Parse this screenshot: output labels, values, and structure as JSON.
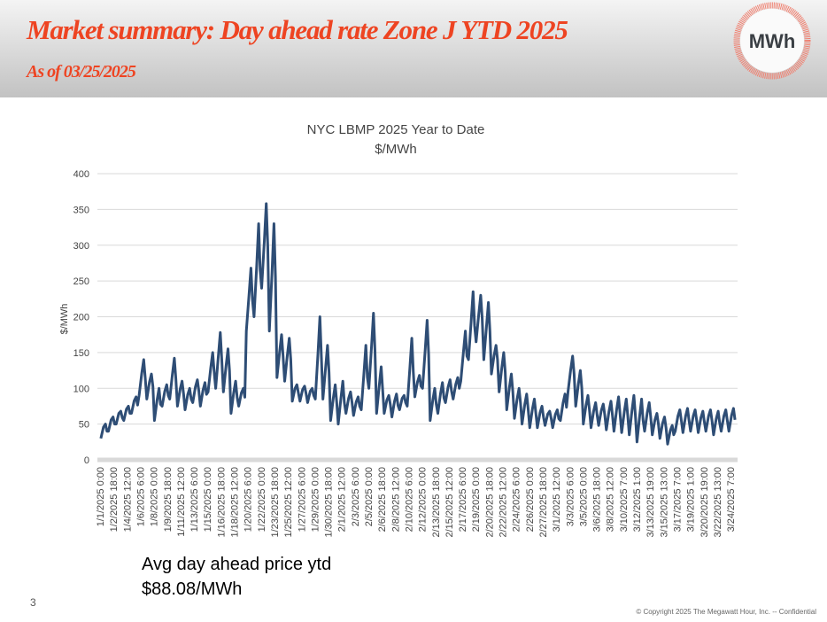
{
  "header": {
    "title": "Market summary: Day ahead rate Zone J YTD 2025",
    "subtitle": "As of 03/25/2025",
    "logo_text": "MWh"
  },
  "colors": {
    "accent": "#ee4422",
    "line": "#2e4d75",
    "grid": "#d9d9d9"
  },
  "chart_data": {
    "type": "line",
    "title": "NYC LBMP 2025 Year to Date",
    "subtitle": "$/MWh",
    "xlabel": "",
    "ylabel": "$/MWh",
    "ylim": [
      0,
      400
    ],
    "yticks": [
      "0",
      "50",
      "100",
      "150",
      "200",
      "250",
      "300",
      "350",
      "400"
    ],
    "grid": true,
    "legend": "none",
    "xtick_labels": [
      "1/1/2025 0:00",
      "1/2/2025 18:00",
      "1/4/2025 12:00",
      "1/6/2025 6:00",
      "1/8/2025 0:00",
      "1/9/2025 18:00",
      "1/11/2025 12:00",
      "1/13/2025 6:00",
      "1/15/2025 0:00",
      "1/16/2025 18:00",
      "1/18/2025 12:00",
      "1/20/2025 6:00",
      "1/22/2025 0:00",
      "1/23/2025 18:00",
      "1/25/2025 12:00",
      "1/27/2025 6:00",
      "1/29/2025 0:00",
      "1/30/2025 18:00",
      "2/1/2025 12:00",
      "2/3/2025 6:00",
      "2/5/2025 0:00",
      "2/6/2025 18:00",
      "2/8/2025 12:00",
      "2/10/2025 6:00",
      "2/12/2025 0:00",
      "2/13/2025 18:00",
      "2/15/2025 12:00",
      "2/17/2025 6:00",
      "2/19/2025 0:00",
      "2/20/2025 18:00",
      "2/22/2025 12:00",
      "2/24/2025 6:00",
      "2/26/2025 0:00",
      "2/27/2025 18:00",
      "3/1/2025 12:00",
      "3/3/2025 6:00",
      "3/5/2025 0:00",
      "3/6/2025 18:00",
      "3/8/2025 12:00",
      "3/10/2025 7:00",
      "3/12/2025 1:00",
      "3/13/2025 19:00",
      "3/15/2025 13:00",
      "3/17/2025 7:00",
      "3/19/2025 1:00",
      "3/20/2025 19:00",
      "3/22/2025 13:00",
      "3/24/2025 7:00"
    ],
    "daily_low_high": [
      [
        "1/1/2025",
        30,
        50
      ],
      [
        "1/2/2025",
        40,
        60
      ],
      [
        "1/3/2025",
        50,
        68
      ],
      [
        "1/4/2025",
        55,
        75
      ],
      [
        "1/5/2025",
        65,
        88
      ],
      [
        "1/6/2025",
        90,
        140
      ],
      [
        "1/7/2025",
        85,
        120
      ],
      [
        "1/8/2025",
        55,
        100
      ],
      [
        "1/9/2025",
        75,
        105
      ],
      [
        "1/10/2025",
        85,
        142
      ],
      [
        "1/11/2025",
        75,
        110
      ],
      [
        "1/12/2025",
        70,
        100
      ],
      [
        "1/13/2025",
        80,
        112
      ],
      [
        "1/14/2025",
        75,
        108
      ],
      [
        "1/15/2025",
        95,
        150
      ],
      [
        "1/16/2025",
        100,
        178
      ],
      [
        "1/17/2025",
        95,
        155
      ],
      [
        "1/18/2025",
        65,
        110
      ],
      [
        "1/19/2025",
        75,
        100
      ],
      [
        "1/20/2025",
        180,
        268
      ],
      [
        "1/21/2025",
        200,
        330
      ],
      [
        "1/22/2025",
        240,
        358
      ],
      [
        "1/23/2025",
        180,
        330
      ],
      [
        "1/24/2025",
        115,
        175
      ],
      [
        "1/25/2025",
        110,
        170
      ],
      [
        "1/26/2025",
        82,
        105
      ],
      [
        "1/27/2025",
        82,
        103
      ],
      [
        "1/28/2025",
        80,
        100
      ],
      [
        "1/29/2025",
        85,
        200
      ],
      [
        "1/30/2025",
        85,
        160
      ],
      [
        "1/31/2025",
        55,
        105
      ],
      [
        "2/1/2025",
        50,
        110
      ],
      [
        "2/2/2025",
        65,
        95
      ],
      [
        "2/3/2025",
        62,
        88
      ],
      [
        "2/4/2025",
        70,
        160
      ],
      [
        "2/5/2025",
        100,
        205
      ],
      [
        "2/6/2025",
        65,
        130
      ],
      [
        "2/7/2025",
        65,
        90
      ],
      [
        "2/8/2025",
        60,
        92
      ],
      [
        "2/9/2025",
        70,
        90
      ],
      [
        "2/10/2025",
        75,
        170
      ],
      [
        "2/11/2025",
        88,
        118
      ],
      [
        "2/12/2025",
        100,
        195
      ],
      [
        "2/13/2025",
        55,
        100
      ],
      [
        "2/14/2025",
        65,
        108
      ],
      [
        "2/15/2025",
        80,
        112
      ],
      [
        "2/16/2025",
        85,
        115
      ],
      [
        "2/17/2025",
        110,
        180
      ],
      [
        "2/18/2025",
        140,
        235
      ],
      [
        "2/19/2025",
        165,
        230
      ],
      [
        "2/20/2025",
        140,
        220
      ],
      [
        "2/21/2025",
        120,
        160
      ],
      [
        "2/22/2025",
        95,
        150
      ],
      [
        "2/23/2025",
        70,
        120
      ],
      [
        "2/24/2025",
        58,
        100
      ],
      [
        "2/25/2025",
        50,
        92
      ],
      [
        "2/26/2025",
        45,
        85
      ],
      [
        "2/27/2025",
        45,
        75
      ],
      [
        "2/28/2025",
        48,
        68
      ],
      [
        "3/1/2025",
        45,
        70
      ],
      [
        "3/2/2025",
        55,
        92
      ],
      [
        "3/3/2025",
        95,
        145
      ],
      [
        "3/4/2025",
        75,
        125
      ],
      [
        "3/5/2025",
        50,
        90
      ],
      [
        "3/6/2025",
        45,
        80
      ],
      [
        "3/7/2025",
        48,
        78
      ],
      [
        "3/8/2025",
        42,
        82
      ],
      [
        "3/9/2025",
        40,
        88
      ],
      [
        "3/10/2025",
        38,
        85
      ],
      [
        "3/11/2025",
        35,
        90
      ],
      [
        "3/12/2025",
        25,
        85
      ],
      [
        "3/13/2025",
        40,
        80
      ],
      [
        "3/14/2025",
        35,
        65
      ],
      [
        "3/15/2025",
        30,
        60
      ],
      [
        "3/16/2025",
        22,
        48
      ],
      [
        "3/17/2025",
        40,
        70
      ],
      [
        "3/18/2025",
        38,
        72
      ],
      [
        "3/19/2025",
        40,
        70
      ],
      [
        "3/20/2025",
        38,
        68
      ],
      [
        "3/21/2025",
        40,
        70
      ],
      [
        "3/22/2025",
        35,
        68
      ],
      [
        "3/23/2025",
        40,
        70
      ],
      [
        "3/24/2025",
        40,
        72
      ]
    ]
  },
  "summary": {
    "label": "Avg day ahead price ytd",
    "value": "$88.08/MWh"
  },
  "footer": {
    "page_number": "3",
    "copyright": "© Copyright 2025 The Megawatt Hour, Inc.  -- Confidential"
  }
}
